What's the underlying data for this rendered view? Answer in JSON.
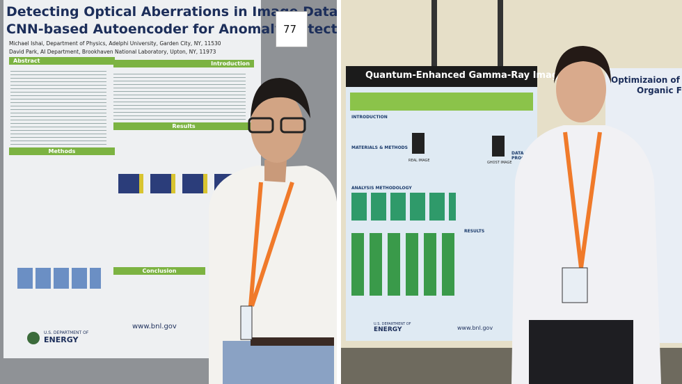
{
  "left_photo": {
    "poster": {
      "title": [
        "Detecting Optical Aberrations in Image Data Via",
        "CNN-based Autoencoder for Anomaly Detection"
      ],
      "authors": [
        "Michael Ishai, Department of Physics, Adelphi University, Garden City, NY, 11530",
        "David Park, AI Department, Brookhaven National Laboratory, Upton, NY, 11973"
      ],
      "sections": [
        "Abstract",
        "Introduction",
        "Results",
        "Methods",
        "Conclusion"
      ],
      "number": "77",
      "footer_url": "www.bnl.gov",
      "footer_org": [
        "U.S. DEPARTMENT OF",
        "ENERGY"
      ]
    }
  },
  "right_photo": {
    "poster": {
      "title": "Quantum-Enhanced Gamma-Ray Imaging",
      "sections": [
        "INTRODUCTION",
        "MATERIALS & METHODS",
        "ANALYSIS METHODOLOGY",
        "RESULTS",
        "DATA PROCESS"
      ],
      "diagram_labels": [
        "REAL IMAGE",
        "GHOST IMAGE"
      ],
      "footer_url": "www.bnl.gov",
      "footer_org": [
        "U.S. DEPARTMENT OF",
        "ENERGY"
      ]
    },
    "side_poster": {
      "title": [
        "Optimizaion of Two",
        "Organic F"
      ]
    }
  }
}
